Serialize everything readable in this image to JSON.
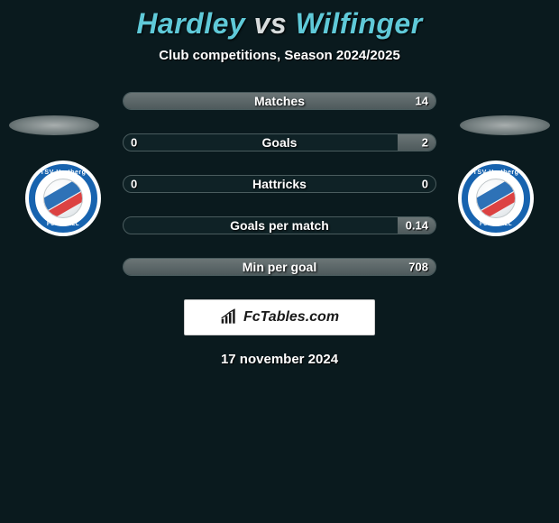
{
  "background_color": "#0a1a1e",
  "title": {
    "player1": "Hardley",
    "vs": "vs",
    "player2": "Wilfinger",
    "color_players": "#5fc9d8",
    "color_vs": "#d8dcdd",
    "fontsize": 32
  },
  "subtitle": "Club competitions, Season 2024/2025",
  "subtitle_color": "#ffffff",
  "shadow_ellipse_color": "#a8aeae",
  "logos": {
    "left": {
      "club": "TSV Hartberg",
      "ring_color": "#1763af",
      "bg_color": "#ffffff",
      "ball_stripe1": "#1763af",
      "ball_stripe2": "#d92f2f",
      "top_text": "TSV Hartberg",
      "bottom_text": "FUSSBALL"
    },
    "right": {
      "club": "TSV Hartberg",
      "ring_color": "#1763af",
      "bg_color": "#ffffff",
      "ball_stripe1": "#1763af",
      "ball_stripe2": "#d92f2f",
      "top_text": "TSV Hartberg",
      "bottom_text": "FUSSBALL"
    }
  },
  "stats": {
    "bar_border_color": "#4a5c5e",
    "bar_bg_color": "#0f2226",
    "bar_fill_color": "#5c6768",
    "label_color": "#ffffff",
    "value_color": "#ffffff",
    "rows": [
      {
        "label": "Matches",
        "left": "",
        "right": "14",
        "left_pct": 0,
        "right_pct": 100
      },
      {
        "label": "Goals",
        "left": "0",
        "right": "2",
        "left_pct": 0,
        "right_pct": 12
      },
      {
        "label": "Hattricks",
        "left": "0",
        "right": "0",
        "left_pct": 0,
        "right_pct": 0
      },
      {
        "label": "Goals per match",
        "left": "",
        "right": "0.14",
        "left_pct": 0,
        "right_pct": 12
      },
      {
        "label": "Min per goal",
        "left": "",
        "right": "708",
        "left_pct": 0,
        "right_pct": 100
      }
    ]
  },
  "brand": {
    "text": "FcTables.com",
    "bg_color": "#ffffff",
    "text_color": "#1a1a1a",
    "icon_color": "#1a1a1a"
  },
  "date": "17 november 2024",
  "date_color": "#ffffff"
}
